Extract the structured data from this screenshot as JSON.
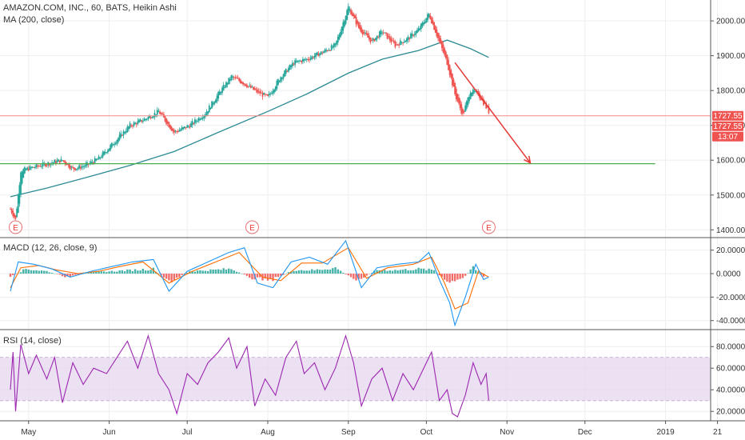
{
  "chart_data": [
    {
      "type": "candlestick",
      "pane": "price",
      "title": "AMAZON.COM, INC., 60, BATS, Heikin Ashi",
      "indicator": "MA (200, close)",
      "ylim": [
        1380,
        2060
      ],
      "yticks": [
        "2000.00",
        "1900.00",
        "1800.00",
        "1700.00",
        "1600.00",
        "1500.00",
        "1400.00"
      ],
      "ytick_values": [
        2000,
        1900,
        1800,
        1700,
        1600,
        1500,
        1400
      ],
      "price_labels": [
        "1727.55",
        "1727.55",
        "13:07"
      ],
      "horizontal_line_red": 1727.55,
      "horizontal_line_green": 1590,
      "arrow": {
        "from_x": "Oct 12",
        "from_y": 1880,
        "to_x": "Nov 10",
        "to_y": 1592
      },
      "earnings_markers": [
        "E",
        "E",
        "E"
      ],
      "earnings_x": [
        "Apr 26",
        "Jul 26",
        "Oct 25"
      ],
      "close_series": [
        {
          "x": "Apr 24",
          "y": 1460
        },
        {
          "x": "Apr 26",
          "y": 1430
        },
        {
          "x": "Apr 28",
          "y": 1570
        },
        {
          "x": "May 3",
          "y": 1580
        },
        {
          "x": "May 8",
          "y": 1590
        },
        {
          "x": "May 14",
          "y": 1600
        },
        {
          "x": "May 18",
          "y": 1575
        },
        {
          "x": "May 23",
          "y": 1585
        },
        {
          "x": "May 28",
          "y": 1605
        },
        {
          "x": "Jun 4",
          "y": 1660
        },
        {
          "x": "Jun 9",
          "y": 1700
        },
        {
          "x": "Jun 14",
          "y": 1715
        },
        {
          "x": "Jun 20",
          "y": 1740
        },
        {
          "x": "Jun 26",
          "y": 1680
        },
        {
          "x": "Jul 2",
          "y": 1700
        },
        {
          "x": "Jul 8",
          "y": 1735
        },
        {
          "x": "Jul 13",
          "y": 1790
        },
        {
          "x": "Jul 18",
          "y": 1840
        },
        {
          "x": "Jul 23",
          "y": 1820
        },
        {
          "x": "Jul 27",
          "y": 1800
        },
        {
          "x": "Aug 1",
          "y": 1780
        },
        {
          "x": "Aug 6",
          "y": 1840
        },
        {
          "x": "Aug 11",
          "y": 1880
        },
        {
          "x": "Aug 16",
          "y": 1890
        },
        {
          "x": "Aug 22",
          "y": 1910
        },
        {
          "x": "Aug 27",
          "y": 1930
        },
        {
          "x": "Sep 1",
          "y": 2040
        },
        {
          "x": "Sep 5",
          "y": 1980
        },
        {
          "x": "Sep 10",
          "y": 1940
        },
        {
          "x": "Sep 14",
          "y": 1970
        },
        {
          "x": "Sep 19",
          "y": 1930
        },
        {
          "x": "Sep 24",
          "y": 1950
        },
        {
          "x": "Sep 28",
          "y": 1975
        },
        {
          "x": "Oct 2",
          "y": 2020
        },
        {
          "x": "Oct 5",
          "y": 1960
        },
        {
          "x": "Oct 9",
          "y": 1880
        },
        {
          "x": "Oct 12",
          "y": 1790
        },
        {
          "x": "Oct 15",
          "y": 1730
        },
        {
          "x": "Oct 18",
          "y": 1800
        },
        {
          "x": "Oct 21",
          "y": 1790
        },
        {
          "x": "Oct 23",
          "y": 1765
        },
        {
          "x": "Oct 25",
          "y": 1740
        }
      ],
      "ma_series": [
        {
          "x": "Apr 24",
          "y": 1495
        },
        {
          "x": "May 8",
          "y": 1520
        },
        {
          "x": "May 23",
          "y": 1550
        },
        {
          "x": "Jun 9",
          "y": 1585
        },
        {
          "x": "Jun 26",
          "y": 1625
        },
        {
          "x": "Jul 13",
          "y": 1680
        },
        {
          "x": "Aug 1",
          "y": 1740
        },
        {
          "x": "Aug 16",
          "y": 1790
        },
        {
          "x": "Sep 1",
          "y": 1850
        },
        {
          "x": "Sep 14",
          "y": 1890
        },
        {
          "x": "Sep 28",
          "y": 1915
        },
        {
          "x": "Oct 9",
          "y": 1945
        },
        {
          "x": "Oct 18",
          "y": 1920
        },
        {
          "x": "Oct 25",
          "y": 1895
        }
      ]
    },
    {
      "type": "line",
      "pane": "macd",
      "title": "MACD (12, 26, close, 9)",
      "ylim": [
        -47,
        30
      ],
      "yticks": [
        "20.0000",
        "0.0000",
        "-20.0000",
        "-40.0000"
      ],
      "ytick_values": [
        20,
        0,
        -20,
        -40
      ],
      "macd_series": [
        {
          "x": "Apr 24",
          "y": -15
        },
        {
          "x": "Apr 27",
          "y": 10
        },
        {
          "x": "May 3",
          "y": 8
        },
        {
          "x": "May 10",
          "y": 4
        },
        {
          "x": "May 17",
          "y": -3
        },
        {
          "x": "May 25",
          "y": 2
        },
        {
          "x": "Jun 2",
          "y": 6
        },
        {
          "x": "Jun 10",
          "y": 10
        },
        {
          "x": "Jun 18",
          "y": 12
        },
        {
          "x": "Jun 24",
          "y": -15
        },
        {
          "x": "Jul 1",
          "y": 2
        },
        {
          "x": "Jul 9",
          "y": 10
        },
        {
          "x": "Jul 17",
          "y": 18
        },
        {
          "x": "Jul 23",
          "y": 22
        },
        {
          "x": "Jul 28",
          "y": -8
        },
        {
          "x": "Aug 3",
          "y": -12
        },
        {
          "x": "Aug 10",
          "y": 10
        },
        {
          "x": "Aug 17",
          "y": 14
        },
        {
          "x": "Aug 24",
          "y": 8
        },
        {
          "x": "Aug 31",
          "y": 28
        },
        {
          "x": "Sep 6",
          "y": -12
        },
        {
          "x": "Sep 12",
          "y": 5
        },
        {
          "x": "Sep 20",
          "y": 8
        },
        {
          "x": "Sep 28",
          "y": 10
        },
        {
          "x": "Oct 2",
          "y": 18
        },
        {
          "x": "Oct 6",
          "y": -5
        },
        {
          "x": "Oct 10",
          "y": -25
        },
        {
          "x": "Oct 12",
          "y": -44
        },
        {
          "x": "Oct 16",
          "y": -20
        },
        {
          "x": "Oct 20",
          "y": 8
        },
        {
          "x": "Oct 23",
          "y": -5
        },
        {
          "x": "Oct 25",
          "y": -3
        }
      ],
      "signal_series": [
        {
          "x": "Apr 24",
          "y": -12
        },
        {
          "x": "Apr 28",
          "y": 5
        },
        {
          "x": "May 5",
          "y": 7
        },
        {
          "x": "May 12",
          "y": 3
        },
        {
          "x": "May 20",
          "y": 0
        },
        {
          "x": "May 28",
          "y": 2
        },
        {
          "x": "Jun 5",
          "y": 6
        },
        {
          "x": "Jun 14",
          "y": 10
        },
        {
          "x": "Jun 24",
          "y": -8
        },
        {
          "x": "Jul 3",
          "y": 2
        },
        {
          "x": "Jul 12",
          "y": 10
        },
        {
          "x": "Jul 21",
          "y": 18
        },
        {
          "x": "Jul 30",
          "y": -3
        },
        {
          "x": "Aug 6",
          "y": -6
        },
        {
          "x": "Aug 14",
          "y": 9
        },
        {
          "x": "Aug 22",
          "y": 9
        },
        {
          "x": "Sep 1",
          "y": 22
        },
        {
          "x": "Sep 8",
          "y": -4
        },
        {
          "x": "Sep 16",
          "y": 5
        },
        {
          "x": "Sep 26",
          "y": 8
        },
        {
          "x": "Oct 3",
          "y": 14
        },
        {
          "x": "Oct 8",
          "y": -8
        },
        {
          "x": "Oct 12",
          "y": -30
        },
        {
          "x": "Oct 17",
          "y": -25
        },
        {
          "x": "Oct 21",
          "y": 2
        },
        {
          "x": "Oct 25",
          "y": -3
        }
      ],
      "histogram": [
        {
          "x": "Apr 24",
          "y": -3
        },
        {
          "x": "Apr 30",
          "y": 4
        },
        {
          "x": "May 8",
          "y": 2
        },
        {
          "x": "May 16",
          "y": -3
        },
        {
          "x": "May 24",
          "y": 1
        },
        {
          "x": "Jun 2",
          "y": 2
        },
        {
          "x": "Jun 10",
          "y": 3
        },
        {
          "x": "Jun 18",
          "y": 4
        },
        {
          "x": "Jun 24",
          "y": -7
        },
        {
          "x": "Jul 2",
          "y": 2
        },
        {
          "x": "Jul 10",
          "y": 3
        },
        {
          "x": "Jul 18",
          "y": 4
        },
        {
          "x": "Jul 26",
          "y": -4
        },
        {
          "x": "Aug 3",
          "y": -5
        },
        {
          "x": "Aug 11",
          "y": 3
        },
        {
          "x": "Aug 19",
          "y": 3
        },
        {
          "x": "Aug 27",
          "y": 5
        },
        {
          "x": "Sep 4",
          "y": -6
        },
        {
          "x": "Sep 12",
          "y": 3
        },
        {
          "x": "Sep 20",
          "y": 3
        },
        {
          "x": "Sep 28",
          "y": 4
        },
        {
          "x": "Oct 4",
          "y": 3
        },
        {
          "x": "Oct 8",
          "y": -6
        },
        {
          "x": "Oct 11",
          "y": -8
        },
        {
          "x": "Oct 15",
          "y": -4
        },
        {
          "x": "Oct 19",
          "y": 5
        },
        {
          "x": "Oct 23",
          "y": -3
        }
      ]
    },
    {
      "type": "line",
      "pane": "rsi",
      "title": "RSI (14, close)",
      "ylim": [
        12,
        95
      ],
      "band": [
        30,
        70
      ],
      "yticks": [
        "80.0000",
        "60.0000",
        "40.0000",
        "20.0000"
      ],
      "ytick_values": [
        80,
        60,
        40,
        20
      ],
      "rsi_series": [
        {
          "x": "Apr 24",
          "y": 40
        },
        {
          "x": "Apr 25",
          "y": 75
        },
        {
          "x": "Apr 26",
          "y": 20
        },
        {
          "x": "Apr 28",
          "y": 82
        },
        {
          "x": "May 1",
          "y": 55
        },
        {
          "x": "May 4",
          "y": 72
        },
        {
          "x": "May 8",
          "y": 50
        },
        {
          "x": "May 11",
          "y": 70
        },
        {
          "x": "May 14",
          "y": 28
        },
        {
          "x": "May 18",
          "y": 65
        },
        {
          "x": "May 22",
          "y": 45
        },
        {
          "x": "May 26",
          "y": 60
        },
        {
          "x": "May 31",
          "y": 55
        },
        {
          "x": "Jun 4",
          "y": 70
        },
        {
          "x": "Jun 8",
          "y": 85
        },
        {
          "x": "Jun 12",
          "y": 60
        },
        {
          "x": "Jun 16",
          "y": 90
        },
        {
          "x": "Jun 20",
          "y": 55
        },
        {
          "x": "Jun 24",
          "y": 40
        },
        {
          "x": "Jun 27",
          "y": 18
        },
        {
          "x": "Jul 1",
          "y": 55
        },
        {
          "x": "Jul 5",
          "y": 45
        },
        {
          "x": "Jul 9",
          "y": 65
        },
        {
          "x": "Jul 13",
          "y": 75
        },
        {
          "x": "Jul 17",
          "y": 88
        },
        {
          "x": "Jul 20",
          "y": 60
        },
        {
          "x": "Jul 24",
          "y": 80
        },
        {
          "x": "Jul 27",
          "y": 25
        },
        {
          "x": "Jul 31",
          "y": 50
        },
        {
          "x": "Aug 4",
          "y": 35
        },
        {
          "x": "Aug 8",
          "y": 70
        },
        {
          "x": "Aug 12",
          "y": 85
        },
        {
          "x": "Aug 15",
          "y": 55
        },
        {
          "x": "Aug 19",
          "y": 65
        },
        {
          "x": "Aug 23",
          "y": 40
        },
        {
          "x": "Aug 27",
          "y": 60
        },
        {
          "x": "Aug 31",
          "y": 90
        },
        {
          "x": "Sep 3",
          "y": 65
        },
        {
          "x": "Sep 6",
          "y": 25
        },
        {
          "x": "Sep 10",
          "y": 50
        },
        {
          "x": "Sep 14",
          "y": 60
        },
        {
          "x": "Sep 18",
          "y": 30
        },
        {
          "x": "Sep 22",
          "y": 55
        },
        {
          "x": "Sep 26",
          "y": 40
        },
        {
          "x": "Sep 30",
          "y": 60
        },
        {
          "x": "Oct 3",
          "y": 75
        },
        {
          "x": "Oct 6",
          "y": 30
        },
        {
          "x": "Oct 9",
          "y": 40
        },
        {
          "x": "Oct 11",
          "y": 18
        },
        {
          "x": "Oct 13",
          "y": 15
        },
        {
          "x": "Oct 16",
          "y": 35
        },
        {
          "x": "Oct 19",
          "y": 65
        },
        {
          "x": "Oct 22",
          "y": 45
        },
        {
          "x": "Oct 24",
          "y": 55
        },
        {
          "x": "Oct 25",
          "y": 30
        }
      ]
    },
    {
      "type": "axis",
      "pane": "time",
      "x_labels": [
        "May",
        "Jun",
        "Jul",
        "Aug",
        "Sep",
        "Oct",
        "Nov",
        "Dec",
        "2019",
        "21"
      ],
      "x_label_dates": [
        "May 1",
        "Jun 1",
        "Jul 1",
        "Aug 1",
        "Sep 1",
        "Oct 1",
        "Nov 1",
        "Dec 1",
        "Jan 1",
        "Jan 21"
      ],
      "x_axis_start": "Apr 20",
      "x_axis_end": "Jan 31"
    }
  ],
  "colors": {
    "candle_up": "#26a69a",
    "candle_down": "#ef5350",
    "ma": "#2c8a94",
    "red_line": "#f28b8b",
    "green_line": "#4caf50",
    "arrow": "#e53935",
    "macd": "#2196f3",
    "signal": "#ff6d00",
    "rsi": "#9c27b0",
    "rsi_band": "#e6d5ef",
    "label_bg": "#ef5350"
  }
}
